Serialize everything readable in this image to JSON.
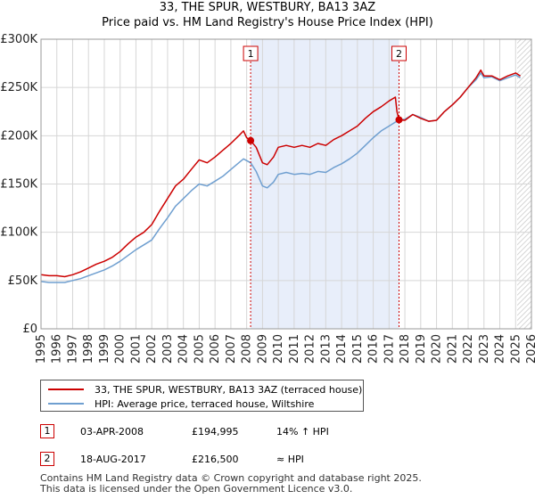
{
  "title_lines": [
    "33, THE SPUR, WESTBURY, BA13 3AZ",
    "Price paid vs. HM Land Registry's House Price Index (HPI)"
  ],
  "colors": {
    "property_line": "#cc0000",
    "hpi_line": "#6f9fd0",
    "marker_border": "#cc0000",
    "band_fill": "#e8eefa",
    "grid": "#d6d6d6",
    "hatch": "#c8c8c8"
  },
  "chart_data": {
    "type": "line",
    "title": "33, THE SPUR, WESTBURY, BA13 3AZ — Price paid vs. HM Land Registry's House Price Index (HPI)",
    "xlabel": "",
    "ylabel": "",
    "xlim": [
      1995,
      2026
    ],
    "ylim": [
      0,
      300000
    ],
    "x_ticks": [
      1995,
      1996,
      1997,
      1998,
      1999,
      2000,
      2001,
      2002,
      2003,
      2004,
      2005,
      2006,
      2007,
      2008,
      2009,
      2010,
      2011,
      2012,
      2013,
      2014,
      2015,
      2016,
      2017,
      2018,
      2019,
      2020,
      2021,
      2022,
      2023,
      2024,
      2025,
      2026
    ],
    "y_ticks": [
      {
        "value": 0,
        "label": "£0"
      },
      {
        "value": 50000,
        "label": "£50K"
      },
      {
        "value": 100000,
        "label": "£100K"
      },
      {
        "value": 150000,
        "label": "£150K"
      },
      {
        "value": 200000,
        "label": "£200K"
      },
      {
        "value": 250000,
        "label": "£250K"
      },
      {
        "value": 300000,
        "label": "£300K"
      }
    ],
    "grid": true,
    "shaded_band": {
      "from": 2008.25,
      "to": 2017.63
    },
    "hatched_region_from": 2025.1,
    "series": [
      {
        "name": "33, THE SPUR, WESTBURY, BA13 3AZ (terraced house)",
        "points": [
          [
            1995,
            56000
          ],
          [
            1995.5,
            55000
          ],
          [
            1996,
            55000
          ],
          [
            1996.5,
            54000
          ],
          [
            1997,
            56000
          ],
          [
            1997.5,
            59000
          ],
          [
            1998,
            63000
          ],
          [
            1998.5,
            67000
          ],
          [
            1999,
            70000
          ],
          [
            1999.5,
            74000
          ],
          [
            2000,
            80000
          ],
          [
            2000.5,
            88000
          ],
          [
            2001,
            95000
          ],
          [
            2001.5,
            100000
          ],
          [
            2002,
            108000
          ],
          [
            2002.5,
            122000
          ],
          [
            2003,
            135000
          ],
          [
            2003.5,
            148000
          ],
          [
            2004,
            155000
          ],
          [
            2004.5,
            165000
          ],
          [
            2005,
            175000
          ],
          [
            2005.5,
            172000
          ],
          [
            2006,
            178000
          ],
          [
            2006.5,
            185000
          ],
          [
            2007,
            192000
          ],
          [
            2007.5,
            200000
          ],
          [
            2007.8,
            205000
          ],
          [
            2008.0,
            198000
          ],
          [
            2008.25,
            194995
          ],
          [
            2008.6,
            188000
          ],
          [
            2009,
            172000
          ],
          [
            2009.3,
            170000
          ],
          [
            2009.7,
            178000
          ],
          [
            2010,
            188000
          ],
          [
            2010.5,
            190000
          ],
          [
            2011,
            188000
          ],
          [
            2011.5,
            190000
          ],
          [
            2012,
            188000
          ],
          [
            2012.5,
            192000
          ],
          [
            2013,
            190000
          ],
          [
            2013.5,
            196000
          ],
          [
            2014,
            200000
          ],
          [
            2014.5,
            205000
          ],
          [
            2015,
            210000
          ],
          [
            2015.5,
            218000
          ],
          [
            2016,
            225000
          ],
          [
            2016.5,
            230000
          ],
          [
            2017,
            236000
          ],
          [
            2017.4,
            240000
          ],
          [
            2017.5,
            225000
          ],
          [
            2017.63,
            216500
          ],
          [
            2018,
            216000
          ],
          [
            2018.5,
            222000
          ],
          [
            2019,
            218000
          ],
          [
            2019.5,
            215000
          ],
          [
            2020,
            216000
          ],
          [
            2020.5,
            225000
          ],
          [
            2021,
            232000
          ],
          [
            2021.5,
            240000
          ],
          [
            2022,
            250000
          ],
          [
            2022.5,
            260000
          ],
          [
            2022.8,
            268000
          ],
          [
            2023,
            262000
          ],
          [
            2023.5,
            262000
          ],
          [
            2024,
            258000
          ],
          [
            2024.5,
            262000
          ],
          [
            2025,
            265000
          ],
          [
            2025.3,
            262000
          ]
        ]
      },
      {
        "name": "HPI: Average price, terraced house, Wiltshire",
        "points": [
          [
            1995,
            49000
          ],
          [
            1995.5,
            48000
          ],
          [
            1996,
            48000
          ],
          [
            1996.5,
            48000
          ],
          [
            1997,
            50000
          ],
          [
            1997.5,
            52000
          ],
          [
            1998,
            55000
          ],
          [
            1998.5,
            58000
          ],
          [
            1999,
            61000
          ],
          [
            1999.5,
            65000
          ],
          [
            2000,
            70000
          ],
          [
            2000.5,
            76000
          ],
          [
            2001,
            82000
          ],
          [
            2001.5,
            87000
          ],
          [
            2002,
            92000
          ],
          [
            2002.5,
            104000
          ],
          [
            2003,
            115000
          ],
          [
            2003.5,
            127000
          ],
          [
            2004,
            135000
          ],
          [
            2004.5,
            143000
          ],
          [
            2005,
            150000
          ],
          [
            2005.5,
            148000
          ],
          [
            2006,
            153000
          ],
          [
            2006.5,
            158000
          ],
          [
            2007,
            165000
          ],
          [
            2007.5,
            172000
          ],
          [
            2007.8,
            176000
          ],
          [
            2008.25,
            172000
          ],
          [
            2008.6,
            163000
          ],
          [
            2009,
            148000
          ],
          [
            2009.3,
            146000
          ],
          [
            2009.7,
            152000
          ],
          [
            2010,
            160000
          ],
          [
            2010.5,
            162000
          ],
          [
            2011,
            160000
          ],
          [
            2011.5,
            161000
          ],
          [
            2012,
            160000
          ],
          [
            2012.5,
            163000
          ],
          [
            2013,
            162000
          ],
          [
            2013.5,
            167000
          ],
          [
            2014,
            171000
          ],
          [
            2014.5,
            176000
          ],
          [
            2015,
            182000
          ],
          [
            2015.5,
            190000
          ],
          [
            2016,
            198000
          ],
          [
            2016.5,
            205000
          ],
          [
            2017,
            210000
          ],
          [
            2017.63,
            216500
          ],
          [
            2018,
            217000
          ],
          [
            2018.5,
            222000
          ],
          [
            2019,
            219000
          ],
          [
            2019.5,
            215000
          ],
          [
            2020,
            216000
          ],
          [
            2020.5,
            225000
          ],
          [
            2021,
            232000
          ],
          [
            2021.5,
            240000
          ],
          [
            2022,
            250000
          ],
          [
            2022.5,
            258000
          ],
          [
            2022.8,
            265000
          ],
          [
            2023,
            260000
          ],
          [
            2023.5,
            261000
          ],
          [
            2024,
            257000
          ],
          [
            2024.5,
            260000
          ],
          [
            2025,
            263000
          ],
          [
            2025.3,
            260000
          ]
        ]
      }
    ],
    "markers": [
      {
        "label": "1",
        "x": 2008.25,
        "price": 194995
      },
      {
        "label": "2",
        "x": 2017.63,
        "price": 216500
      }
    ]
  },
  "legend": {
    "property_label": "33, THE SPUR, WESTBURY, BA13 3AZ (terraced house)",
    "hpi_label": "HPI: Average price, terraced house, Wiltshire"
  },
  "transactions": [
    {
      "num": "1",
      "date": "03-APR-2008",
      "price": "£194,995",
      "hpi": "14% ↑ HPI"
    },
    {
      "num": "2",
      "date": "18-AUG-2017",
      "price": "£216,500",
      "hpi": "≈ HPI"
    }
  ],
  "footer": {
    "line1": "Contains HM Land Registry data © Crown copyright and database right 2025.",
    "line2": "This data is licensed under the Open Government Licence v3.0."
  }
}
